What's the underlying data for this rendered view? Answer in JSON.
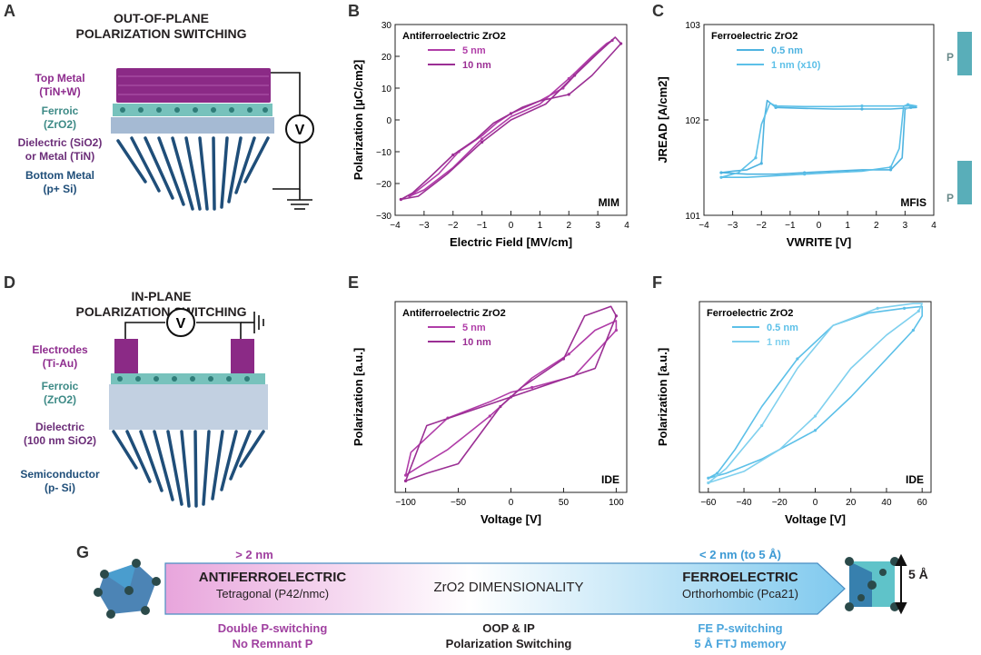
{
  "panels": {
    "A": {
      "letter": "A",
      "title_line1": "OUT-OF-PLANE",
      "title_line2": "POLARIZATION SWITCHING",
      "layers": [
        {
          "line1": "Top Metal",
          "line2": "(TiN+W)"
        },
        {
          "line1": "Ferroic",
          "line2": "(ZrO2)"
        },
        {
          "line1": "Dielectric (SiO2)",
          "line2": "or Metal (TiN)"
        },
        {
          "line1": "Bottom Metal",
          "line2": "(p+ Si)"
        }
      ],
      "meter": "V"
    },
    "B": {
      "letter": "B"
    },
    "C": {
      "letter": "C"
    },
    "D": {
      "letter": "D",
      "title_line1": "IN-PLANE",
      "title_line2": "POLARIZATION SWITCHING",
      "layers": [
        {
          "line1": "Electrodes",
          "line2": "(Ti-Au)"
        },
        {
          "line1": "Ferroic",
          "line2": "(ZrO2)"
        },
        {
          "line1": "Dielectric",
          "line2": "(100 nm SiO2)"
        },
        {
          "line1": "Semiconductor",
          "line2": "(p- Si)"
        }
      ],
      "meter": "V"
    },
    "E": {
      "letter": "E"
    },
    "F": {
      "letter": "F"
    },
    "G": {
      "letter": "G",
      "left_top": "> 2 nm",
      "right_top": "< 2 nm (to 5 Å)",
      "left_title": "ANTIFERROELECTRIC",
      "left_sub": "Tetragonal (P42/nmc)",
      "center_title": "ZrO2 DIMENSIONALITY",
      "right_title": "FERROELECTRIC",
      "right_sub": "Orthorhombic (Pca21)",
      "left_bottom1": "Double P-switching",
      "left_bottom2": "No Remnant P",
      "center_bottom1": "OOP & IP",
      "center_bottom2": "Polarization Switching",
      "right_bottom1": "FE P-switching",
      "right_bottom2": "5 Å FTJ memory",
      "dimension": "5 Å"
    }
  },
  "chart_data": [
    {
      "id": "B",
      "type": "line",
      "legend_title": "Antiferroelectric ZrO2",
      "series": [
        {
          "name": "5 nm",
          "color": "#b03da8",
          "x": [
            -3.5,
            -3.0,
            -2.0,
            -1.0,
            0.0,
            1.0,
            2.0,
            2.8,
            3.3,
            3.5,
            3.2,
            2.5,
            1.8,
            1.0,
            0.5,
            0.0,
            -0.5,
            -1.0,
            -1.8,
            -2.5,
            -3.2,
            -3.5
          ],
          "y": [
            -24,
            -22,
            -15,
            -6,
            1,
            5,
            13,
            20,
            24,
            25,
            23,
            17,
            10,
            6,
            4,
            2,
            -1,
            -5,
            -10,
            -17,
            -22,
            -24
          ]
        },
        {
          "name": "10 nm",
          "color": "#9b2f94",
          "x": [
            -3.8,
            -3.2,
            -2.2,
            -1.0,
            0.0,
            1.2,
            2.2,
            3.0,
            3.6,
            3.8,
            3.5,
            2.8,
            2.0,
            1.0,
            0.4,
            0.0,
            -0.6,
            -1.2,
            -2.0,
            -2.8,
            -3.4,
            -3.8
          ],
          "y": [
            -25,
            -24,
            -17,
            -7,
            0,
            5,
            14,
            21,
            26,
            24,
            21,
            14,
            8,
            6,
            4,
            2,
            -1,
            -6,
            -11,
            -18,
            -23,
            -25
          ]
        }
      ],
      "xlabel": "Electric Field [MV/cm]",
      "ylabel": "Polarization [µC/cm2]",
      "xlim": [
        -4,
        4
      ],
      "ylim": [
        -30,
        30
      ],
      "xticks": [
        -4,
        -3,
        -2,
        -1,
        0,
        1,
        2,
        3,
        4
      ],
      "yticks": [
        -30,
        -20,
        -10,
        0,
        10,
        20,
        30
      ],
      "annotation": "MIM"
    },
    {
      "id": "C",
      "type": "line",
      "legend_title": "Ferroelectric ZrO2",
      "series": [
        {
          "name": "0.5 nm",
          "color": "#4eb3e0",
          "x": [
            -3.4,
            -2.5,
            -1.5,
            -0.5,
            0.5,
            1.5,
            2.5,
            2.9,
            3.0,
            3.2,
            3.4,
            2.5,
            1.5,
            0.5,
            -0.5,
            -1.5,
            -1.8,
            -1.9,
            -2.0,
            -2.5,
            -3.0,
            -3.4
          ],
          "y": [
            28,
            27,
            27,
            28,
            29,
            30,
            30,
            40,
            130,
            135,
            135,
            130,
            130,
            130,
            132,
            135,
            160,
            100,
            35,
            30,
            29,
            28
          ]
        },
        {
          "name": "1 nm (x10)",
          "color": "#5cc0e8",
          "x": [
            -3.4,
            -2.5,
            -1.5,
            -0.5,
            0.5,
            1.5,
            2.5,
            2.8,
            2.95,
            3.1,
            3.4,
            2.5,
            1.5,
            0.5,
            -0.5,
            -1.5,
            -1.7,
            -2.0,
            -2.2,
            -2.8,
            -3.4
          ],
          "y": [
            25,
            25,
            26,
            27,
            28,
            29,
            32,
            50,
            140,
            145,
            140,
            140,
            140,
            138,
            138,
            140,
            150,
            90,
            40,
            28,
            25
          ]
        }
      ],
      "xlabel": "VWRITE [V]",
      "ylabel": "JREAD [A/cm2]",
      "xlim": [
        -4,
        4
      ],
      "ylim_log": [
        10,
        1000
      ],
      "xticks": [
        -4,
        -3,
        -2,
        -1,
        0,
        1,
        2,
        3,
        4
      ],
      "yticks": [
        "10^1",
        "10^2",
        "10^3"
      ],
      "annotation": "MFIS",
      "state_label": "P"
    },
    {
      "id": "E",
      "type": "line",
      "legend_title": "Antiferroelectric ZrO2",
      "series": [
        {
          "name": "5 nm",
          "color": "#b03da8",
          "x": [
            -100,
            -90,
            -60,
            -20,
            0,
            20,
            55,
            80,
            100,
            100,
            90,
            60,
            20,
            0,
            -20,
            -60,
            -95,
            -100
          ],
          "y": [
            -0.82,
            -0.75,
            -0.55,
            -0.2,
            0.0,
            0.2,
            0.45,
            0.7,
            0.8,
            0.7,
            0.58,
            0.22,
            0.1,
            0.05,
            -0.05,
            -0.22,
            -0.58,
            -0.82
          ]
        },
        {
          "name": "10 nm",
          "color": "#9b2f94",
          "x": [
            -100,
            -80,
            -50,
            -10,
            0,
            10,
            50,
            70,
            95,
            100,
            80,
            40,
            0,
            -40,
            -80,
            -100
          ],
          "y": [
            -0.88,
            -0.8,
            -0.7,
            -0.1,
            0.0,
            0.1,
            0.4,
            0.85,
            0.95,
            0.85,
            0.3,
            0.15,
            0.0,
            -0.15,
            -0.3,
            -0.88
          ]
        }
      ],
      "xlabel": "Voltage [V]",
      "ylabel": "Polarization [a.u.]",
      "xlim": [
        -110,
        110
      ],
      "ylim": [
        -1,
        1
      ],
      "xticks": [
        -100,
        -50,
        0,
        50,
        100
      ],
      "annotation": "IDE"
    },
    {
      "id": "F",
      "type": "line",
      "legend_title": "Ferroelectric ZrO2",
      "series": [
        {
          "name": "0.5 nm",
          "color": "#5cc0e8",
          "x": [
            -60,
            -50,
            -30,
            0,
            20,
            40,
            55,
            60,
            60,
            50,
            30,
            10,
            -10,
            -30,
            -45,
            -55,
            -60
          ],
          "y": [
            -0.85,
            -0.8,
            -0.65,
            -0.35,
            0.0,
            0.4,
            0.7,
            0.85,
            0.95,
            0.93,
            0.88,
            0.75,
            0.4,
            -0.1,
            -0.55,
            -0.8,
            -0.85
          ]
        },
        {
          "name": "1 nm",
          "color": "#7fd0ee",
          "x": [
            -60,
            -40,
            -20,
            0,
            20,
            40,
            58,
            60,
            55,
            35,
            10,
            -10,
            -30,
            -50,
            -60
          ],
          "y": [
            -0.9,
            -0.78,
            -0.55,
            -0.2,
            0.3,
            0.65,
            0.9,
            0.98,
            0.98,
            0.93,
            0.75,
            0.3,
            -0.3,
            -0.75,
            -0.9
          ]
        }
      ],
      "xlabel": "Voltage [V]",
      "ylabel": "Polarization [a.u.]",
      "xlim": [
        -65,
        65
      ],
      "ylim": [
        -1,
        1
      ],
      "xticks": [
        -60,
        -40,
        -20,
        0,
        20,
        40,
        60
      ],
      "annotation": "IDE"
    }
  ],
  "colors": {
    "purple": "#9b2f94",
    "teal": "#3d8a86",
    "navy": "#1f4e79",
    "lightblue": "#5cc0e8"
  }
}
